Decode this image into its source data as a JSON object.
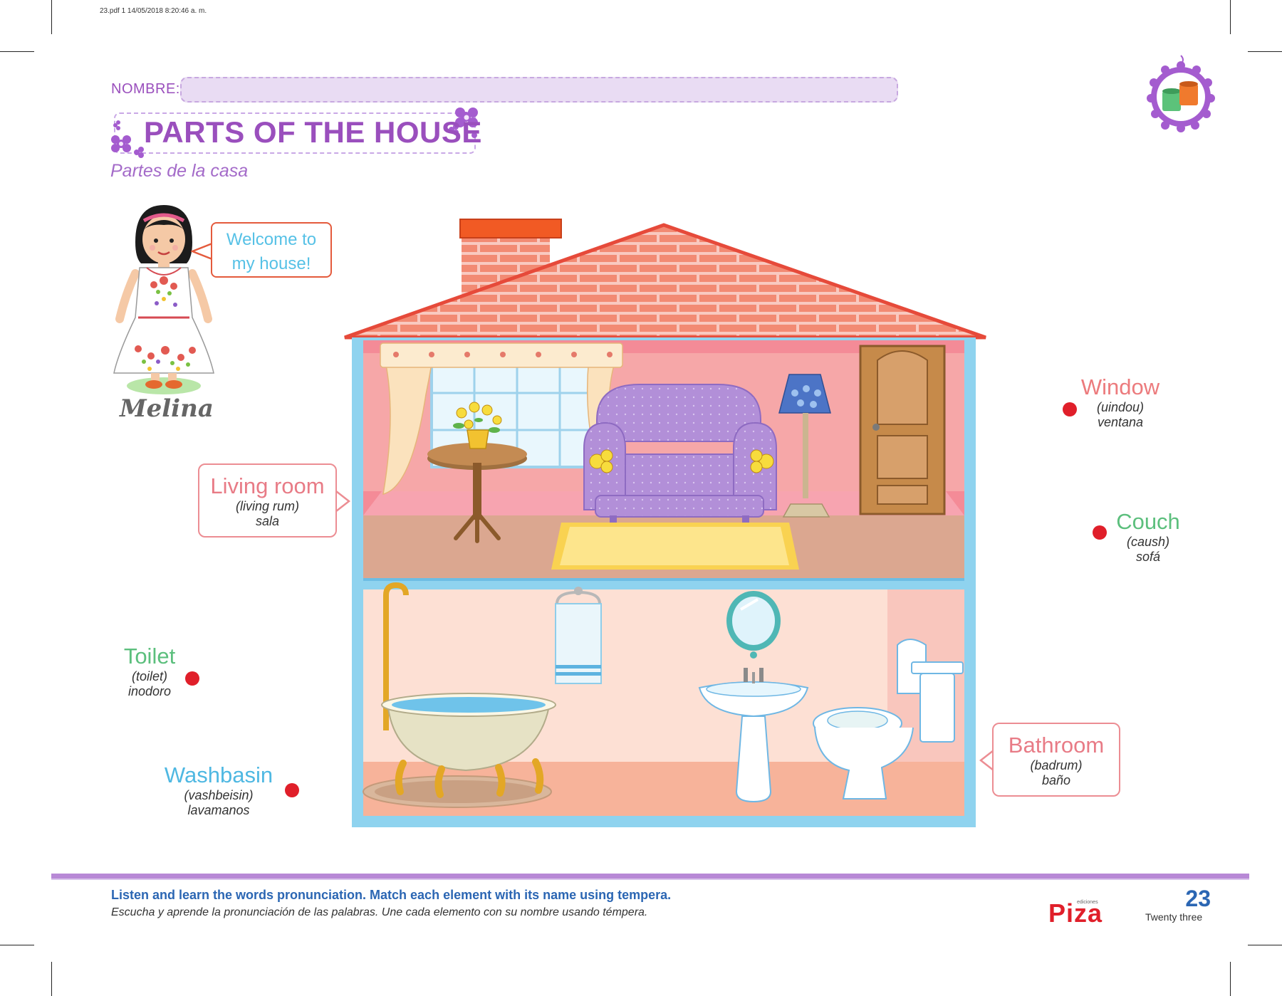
{
  "print_meta": "23.pdf   1   14/05/2018   8:20:46 a. m.",
  "header": {
    "name_label": "NOMBRE:",
    "title": "PARTS OF THE HOUSE",
    "subtitle": "Partes de la casa"
  },
  "character": {
    "greeting_line1": "Welcome to",
    "greeting_line2": "my house!",
    "name": "Melina"
  },
  "labels": {
    "living_room": {
      "title": "Living room",
      "pron": "(living rum)",
      "es": "sala",
      "color": "#e87b86"
    },
    "window": {
      "title": "Window",
      "pron": "(uindou)",
      "es": "ventana",
      "color": "#ec7b7d"
    },
    "couch": {
      "title": "Couch",
      "pron": "(caush)",
      "es": "sofá",
      "color": "#5cbf7d"
    },
    "toilet": {
      "title": "Toilet",
      "pron": "(toilet)",
      "es": "inodoro",
      "color": "#5cbf7d"
    },
    "washbasin": {
      "title": "Washbasin",
      "pron": "(vashbeisin)",
      "es": "lavamanos",
      "color": "#4fb8e2"
    },
    "bathroom": {
      "title": "Bathroom",
      "pron": "(badrum)",
      "es": "baño",
      "color": "#e87b86"
    }
  },
  "footer": {
    "instruction_en": "Listen and learn the words pronunciation. Match each element with its name using tempera.",
    "instruction_es": "Escucha y aprende la pronunciación de las palabras. Une cada elemento con su nombre usando témpera.",
    "brand_small": "ediciones",
    "brand": "Piza",
    "page_number": "23",
    "page_word": "Twenty three"
  },
  "colors": {
    "accent_purple": "#9a4fbd",
    "match_dot": "#e01f2a",
    "instruction_blue": "#2b66b3"
  }
}
